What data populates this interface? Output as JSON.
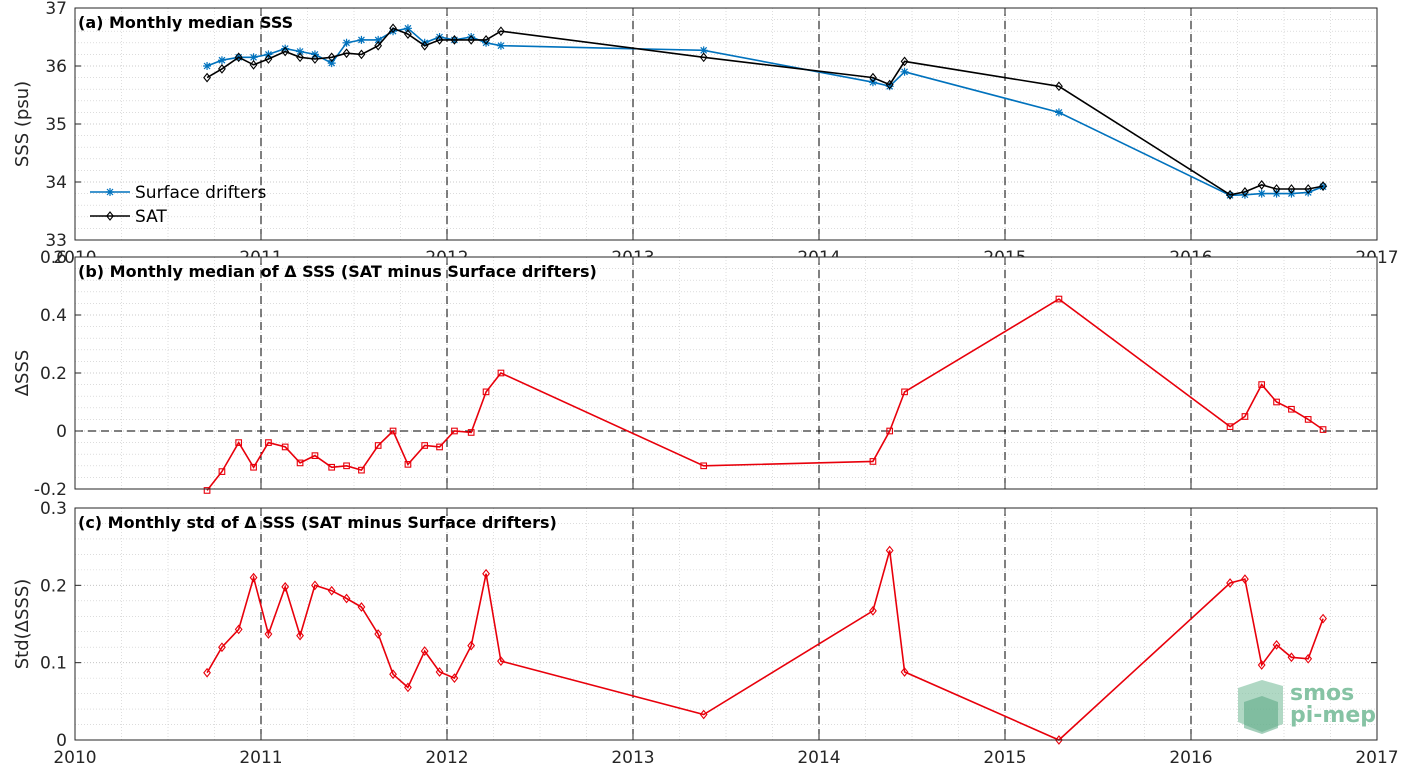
{
  "chart_data": [
    {
      "type": "line",
      "title": "(a) Monthly median SSS",
      "ylabel": "SSS (psu)",
      "xlim": [
        2010,
        2017
      ],
      "ylim": [
        33,
        37
      ],
      "x_ticks": [
        2010,
        2011,
        2012,
        2013,
        2014,
        2015,
        2016,
        2017
      ],
      "x_tick_labels": [
        "2010",
        "2011",
        "2012",
        "2013",
        "2014",
        "2015",
        "2016",
        "2017"
      ],
      "y_ticks": [
        33,
        34,
        35,
        36,
        37
      ],
      "y_tick_labels": [
        "33",
        "34",
        "35",
        "36",
        "37"
      ],
      "grid": true,
      "dashed_year_lines": [
        2011,
        2012,
        2013,
        2014,
        2015,
        2016
      ],
      "legend_position": "bottom-left",
      "series": [
        {
          "name": "Surface drifters",
          "color": "#0072bd",
          "marker": "star",
          "x": [
            2010.71,
            2010.79,
            2010.88,
            2010.96,
            2011.04,
            2011.13,
            2011.21,
            2011.29,
            2011.38,
            2011.46,
            2011.54,
            2011.63,
            2011.71,
            2011.79,
            2011.88,
            2011.96,
            2012.04,
            2012.13,
            2012.21,
            2012.29,
            2013.38,
            2014.29,
            2014.38,
            2014.46,
            2015.29,
            2016.21,
            2016.29,
            2016.38,
            2016.46,
            2016.54,
            2016.63,
            2016.71
          ],
          "y": [
            36.0,
            36.1,
            36.15,
            36.15,
            36.2,
            36.3,
            36.25,
            36.2,
            36.05,
            36.4,
            36.45,
            36.45,
            36.6,
            36.65,
            36.4,
            36.5,
            36.45,
            36.5,
            36.4,
            36.35,
            36.27,
            35.72,
            35.65,
            35.9,
            35.2,
            33.77,
            33.78,
            33.8,
            33.8,
            33.8,
            33.82,
            33.92
          ]
        },
        {
          "name": "SAT",
          "color": "#000000",
          "marker": "diamond",
          "x": [
            2010.71,
            2010.79,
            2010.88,
            2010.96,
            2011.04,
            2011.13,
            2011.21,
            2011.29,
            2011.38,
            2011.46,
            2011.54,
            2011.63,
            2011.71,
            2011.79,
            2011.88,
            2011.96,
            2012.04,
            2012.13,
            2012.21,
            2012.29,
            2013.38,
            2014.29,
            2014.38,
            2014.46,
            2015.29,
            2016.21,
            2016.29,
            2016.38,
            2016.46,
            2016.54,
            2016.63,
            2016.71
          ],
          "y": [
            35.8,
            35.95,
            36.15,
            36.02,
            36.12,
            36.25,
            36.15,
            36.12,
            36.15,
            36.22,
            36.2,
            36.35,
            36.65,
            36.55,
            36.35,
            36.45,
            36.45,
            36.45,
            36.45,
            36.6,
            36.15,
            35.8,
            35.68,
            36.08,
            35.65,
            33.78,
            33.83,
            33.95,
            33.88,
            33.88,
            33.88,
            33.93
          ]
        }
      ]
    },
    {
      "type": "line",
      "title": "(b) Monthly median of Δ SSS (SAT minus Surface drifters)",
      "ylabel": "ΔSSS",
      "xlim": [
        2010,
        2017
      ],
      "ylim": [
        -0.2,
        0.6
      ],
      "x_ticks": [
        2010,
        2011,
        2012,
        2013,
        2014,
        2015,
        2016,
        2017
      ],
      "y_ticks": [
        -0.2,
        0,
        0.2,
        0.4,
        0.6
      ],
      "y_tick_labels": [
        "-0.2",
        "0",
        "0.2",
        "0.4",
        "0.6"
      ],
      "grid": true,
      "dashed_year_lines": [
        2011,
        2012,
        2013,
        2014,
        2015,
        2016
      ],
      "zero_line": true,
      "series": [
        {
          "color": "#e8000b",
          "marker": "square",
          "x": [
            2010.71,
            2010.79,
            2010.88,
            2010.96,
            2011.04,
            2011.13,
            2011.21,
            2011.29,
            2011.38,
            2011.46,
            2011.54,
            2011.63,
            2011.71,
            2011.79,
            2011.88,
            2011.96,
            2012.04,
            2012.13,
            2012.21,
            2012.29,
            2013.38,
            2014.29,
            2014.38,
            2014.46,
            2015.29,
            2016.21,
            2016.29,
            2016.38,
            2016.46,
            2016.54,
            2016.63,
            2016.71
          ],
          "y": [
            -0.205,
            -0.14,
            -0.04,
            -0.125,
            -0.04,
            -0.055,
            -0.11,
            -0.085,
            -0.125,
            -0.12,
            -0.135,
            -0.05,
            0.0,
            -0.115,
            -0.05,
            -0.055,
            0.0,
            -0.005,
            0.135,
            0.2,
            -0.12,
            -0.105,
            0.0,
            0.135,
            0.455,
            0.015,
            0.05,
            0.16,
            0.1,
            0.075,
            0.04,
            0.005
          ]
        }
      ]
    },
    {
      "type": "line",
      "title": "(c) Monthly std of Δ SSS (SAT minus Surface drifters)",
      "ylabel": "Std(ΔSSS)",
      "xlim": [
        2010,
        2017
      ],
      "ylim": [
        0,
        0.3
      ],
      "x_ticks": [
        2010,
        2011,
        2012,
        2013,
        2014,
        2015,
        2016,
        2017
      ],
      "x_tick_labels": [
        "2010",
        "2011",
        "2012",
        "2013",
        "2014",
        "2015",
        "2016",
        "2017"
      ],
      "y_ticks": [
        0,
        0.1,
        0.2,
        0.3
      ],
      "y_tick_labels": [
        "0",
        "0.1",
        "0.2",
        "0.3"
      ],
      "grid": true,
      "dashed_year_lines": [
        2011,
        2012,
        2013,
        2014,
        2015,
        2016
      ],
      "series": [
        {
          "color": "#e8000b",
          "marker": "diamond",
          "x": [
            2010.71,
            2010.79,
            2010.88,
            2010.96,
            2011.04,
            2011.13,
            2011.21,
            2011.29,
            2011.38,
            2011.46,
            2011.54,
            2011.63,
            2011.71,
            2011.79,
            2011.88,
            2011.96,
            2012.04,
            2012.13,
            2012.21,
            2012.29,
            2013.38,
            2014.29,
            2014.38,
            2014.46,
            2015.29,
            2016.21,
            2016.29,
            2016.38,
            2016.46,
            2016.54,
            2016.63,
            2016.71
          ],
          "y": [
            0.087,
            0.12,
            0.143,
            0.21,
            0.137,
            0.198,
            0.135,
            0.2,
            0.193,
            0.183,
            0.172,
            0.137,
            0.085,
            0.068,
            0.115,
            0.088,
            0.08,
            0.122,
            0.215,
            0.102,
            0.033,
            0.167,
            0.245,
            0.088,
            0.0,
            0.203,
            0.208,
            0.097,
            0.123,
            0.107,
            0.105,
            0.157
          ]
        }
      ]
    }
  ],
  "logo": {
    "line1": "smos",
    "line2": "pi-mep",
    "color": "#86c3a4"
  }
}
